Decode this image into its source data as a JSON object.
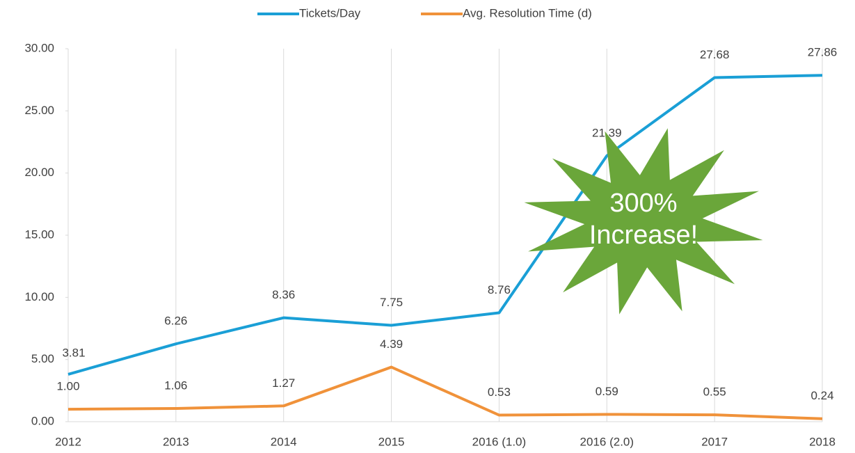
{
  "chart_data": {
    "type": "line",
    "categories": [
      "2012",
      "2013",
      "2014",
      "2015",
      "2016 (1.0)",
      "2016 (2.0)",
      "2017",
      "2018"
    ],
    "series": [
      {
        "name": "Tickets/Day",
        "color": "#1a9fd6",
        "values": [
          3.81,
          6.26,
          8.36,
          7.75,
          8.76,
          21.39,
          27.68,
          27.86
        ],
        "value_labels": [
          "3.81",
          "6.26",
          "8.36",
          "7.75",
          "8.76",
          "21.39",
          "27.68",
          "27.86"
        ]
      },
      {
        "name": "Avg. Resolution Time (d)",
        "color": "#f0923a",
        "values": [
          1.0,
          1.06,
          1.27,
          4.39,
          0.53,
          0.59,
          0.55,
          0.24
        ],
        "value_labels": [
          "1.00",
          "1.06",
          "1.27",
          "4.39",
          "0.53",
          "0.59",
          "0.55",
          "0.24"
        ]
      }
    ],
    "ylim": [
      0,
      30
    ],
    "yticks": [
      {
        "value": 0,
        "label": "0.00"
      },
      {
        "value": 5,
        "label": "5.00"
      },
      {
        "value": 10,
        "label": "10.00"
      },
      {
        "value": 15,
        "label": "15.00"
      },
      {
        "value": 20,
        "label": "20.00"
      },
      {
        "value": 25,
        "label": "25.00"
      },
      {
        "value": 30,
        "label": "30.00"
      }
    ],
    "grid": true,
    "legend": "top",
    "annotation": [
      "300%",
      "Increase!"
    ]
  }
}
